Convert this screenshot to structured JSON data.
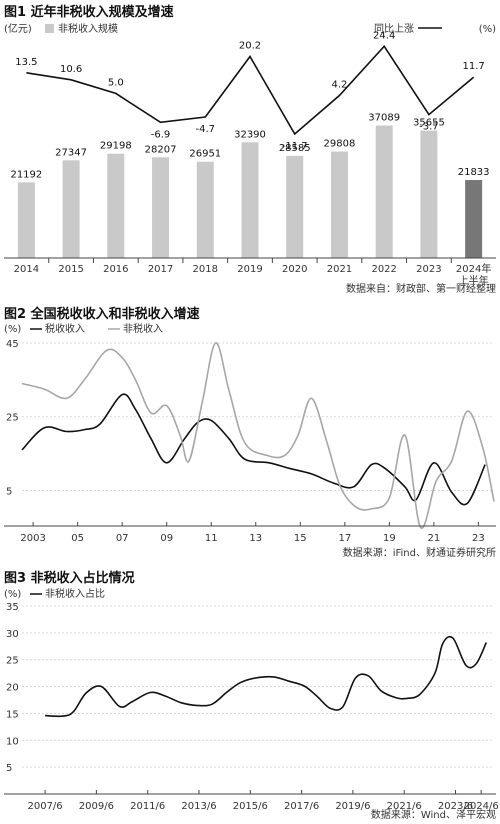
{
  "colors": {
    "bar": "#c9c9c9",
    "bar_highlight": "#777777",
    "line_dark": "#111111",
    "line_gray": "#a6a6a6",
    "grid": "#cfcfcf",
    "axis": "#444444"
  },
  "chart_data": [
    {
      "type": "bar",
      "title": "图1 近年非税收入规模及增速",
      "unit_left": "(亿元)",
      "legend_bar": "非税收入规模",
      "legend_line": "同比上涨",
      "unit_right": "(%)",
      "categories": [
        "2014",
        "2015",
        "2016",
        "2017",
        "2018",
        "2019",
        "2020",
        "2021",
        "2022",
        "2023",
        "2024年"
      ],
      "category_sub": [
        "",
        "",
        "",
        "",
        "",
        "",
        "",
        "",
        "",
        "",
        "上半年"
      ],
      "values": [
        21192,
        27347,
        29198,
        28207,
        26951,
        32390,
        28585,
        29808,
        37089,
        35655,
        21833
      ],
      "growth": [
        13.5,
        10.6,
        5.0,
        -6.9,
        -4.7,
        20.2,
        -11.7,
        4.2,
        24.4,
        -3.7,
        11.7
      ],
      "growth_labels": [
        "13.5",
        "10.6",
        "5.0",
        "-6.9",
        "-4.7",
        "20.2",
        "-11.7",
        "4.2",
        "24.4",
        "-3.7",
        "11.7"
      ],
      "highlight_index": 10,
      "source": "数据来自：财政部、第一财经整理"
    },
    {
      "type": "line",
      "title": "图2 全国税收收入和非税收入增速",
      "unit": "(%)",
      "ylim": [
        -6,
        45
      ],
      "yticks": [
        "45",
        "25",
        "5"
      ],
      "ytick_values": [
        45,
        25,
        5
      ],
      "x_tick_labels": [
        "2003",
        "05",
        "07",
        "09",
        "11",
        "13",
        "15",
        "17",
        "19",
        "21",
        "23"
      ],
      "x_tick_values": [
        2003,
        2005,
        2007,
        2009,
        2011,
        2013,
        2015,
        2017,
        2019,
        2021,
        2023
      ],
      "xlim": [
        2002.5,
        2023.7
      ],
      "series": [
        {
          "name": "税收收入",
          "x": [
            2002.5,
            2003.5,
            2004.5,
            2005.3,
            2006,
            2007,
            2007.6,
            2008.3,
            2009,
            2009.8,
            2010.4,
            2011,
            2011.8,
            2012.5,
            2013.6,
            2014.5,
            2015.5,
            2016.5,
            2017.4,
            2018.2,
            2018.8,
            2019.7,
            2020.2,
            2021,
            2021.8,
            2022.5,
            2023.3
          ],
          "y": [
            16.0,
            22.0,
            21.0,
            21.5,
            23.0,
            31.0,
            27.0,
            19.0,
            12.5,
            19.0,
            23.5,
            24.0,
            19.0,
            13.5,
            12.5,
            11.0,
            9.5,
            7.0,
            6.0,
            12.0,
            11.0,
            6.0,
            2.5,
            12.5,
            4.5,
            1.5,
            12.0
          ]
        },
        {
          "name": "非税收入",
          "x": [
            2002.5,
            2003.5,
            2004.5,
            2005.3,
            2006.3,
            2007,
            2007.6,
            2008.3,
            2009,
            2009.6,
            2010,
            2010.6,
            2011.2,
            2011.8,
            2012.5,
            2013.5,
            2014.3,
            2014.9,
            2015.5,
            2016.2,
            2016.8,
            2017.5,
            2018.2,
            2019,
            2019.7,
            2020.4,
            2021.1,
            2021.8,
            2022.5,
            2023.2,
            2023.7
          ],
          "y": [
            34.0,
            32.5,
            30.0,
            35.0,
            43.0,
            41.0,
            35.0,
            26.0,
            28.0,
            20.0,
            13.0,
            29.0,
            45.0,
            32.0,
            18.0,
            14.5,
            14.5,
            20.0,
            30.0,
            18.0,
            6.0,
            0.5,
            0.0,
            3.0,
            20.0,
            -5.0,
            7.5,
            13.0,
            26.5,
            16.5,
            2.0
          ]
        }
      ],
      "source": "数据来源：iFind、财通证券研究所"
    },
    {
      "type": "line",
      "title": "图3 非税收入占比情况",
      "unit": "(%)",
      "ylim": [
        0,
        35
      ],
      "yticks": [
        "35",
        "30",
        "25",
        "20",
        "15",
        "10",
        "5"
      ],
      "ytick_values": [
        35,
        30,
        25,
        20,
        15,
        10,
        5
      ],
      "x_tick_labels": [
        "2007/6",
        "2009/6",
        "2011/6",
        "2013/6",
        "2015/6",
        "2017/6",
        "2019/6",
        "2021/6",
        "2023/6",
        "2024/6"
      ],
      "x_tick_values": [
        2007.5,
        2009.5,
        2011.5,
        2013.5,
        2015.5,
        2017.5,
        2019.5,
        2021.5,
        2023.5,
        2024.5
      ],
      "xlim": [
        2006.6,
        2025.0
      ],
      "series": [
        {
          "name": "非税收入占比",
          "x": [
            2007.5,
            2008.2,
            2008.6,
            2009.1,
            2009.7,
            2010.4,
            2010.9,
            2011.6,
            2012.2,
            2012.8,
            2013.4,
            2014.0,
            2014.6,
            2015.1,
            2015.7,
            2016.4,
            2017.0,
            2017.6,
            2018.1,
            2018.6,
            2019.1,
            2019.6,
            2020.1,
            2020.6,
            2021.2,
            2021.6,
            2022.1,
            2022.7,
            2023.0,
            2023.4,
            2023.9,
            2024.3,
            2024.7
          ],
          "y": [
            14.6,
            14.5,
            15.3,
            18.8,
            20.0,
            16.3,
            17.2,
            18.9,
            18.2,
            17.0,
            16.5,
            16.7,
            19.0,
            20.7,
            21.6,
            21.8,
            21.0,
            20.1,
            18.2,
            16.0,
            16.2,
            21.6,
            22.0,
            19.2,
            17.9,
            17.8,
            18.5,
            22.5,
            28.0,
            29.0,
            24.0,
            24.2,
            28.2
          ]
        }
      ],
      "source": "数据来源：Wind、泽平宏观"
    }
  ]
}
